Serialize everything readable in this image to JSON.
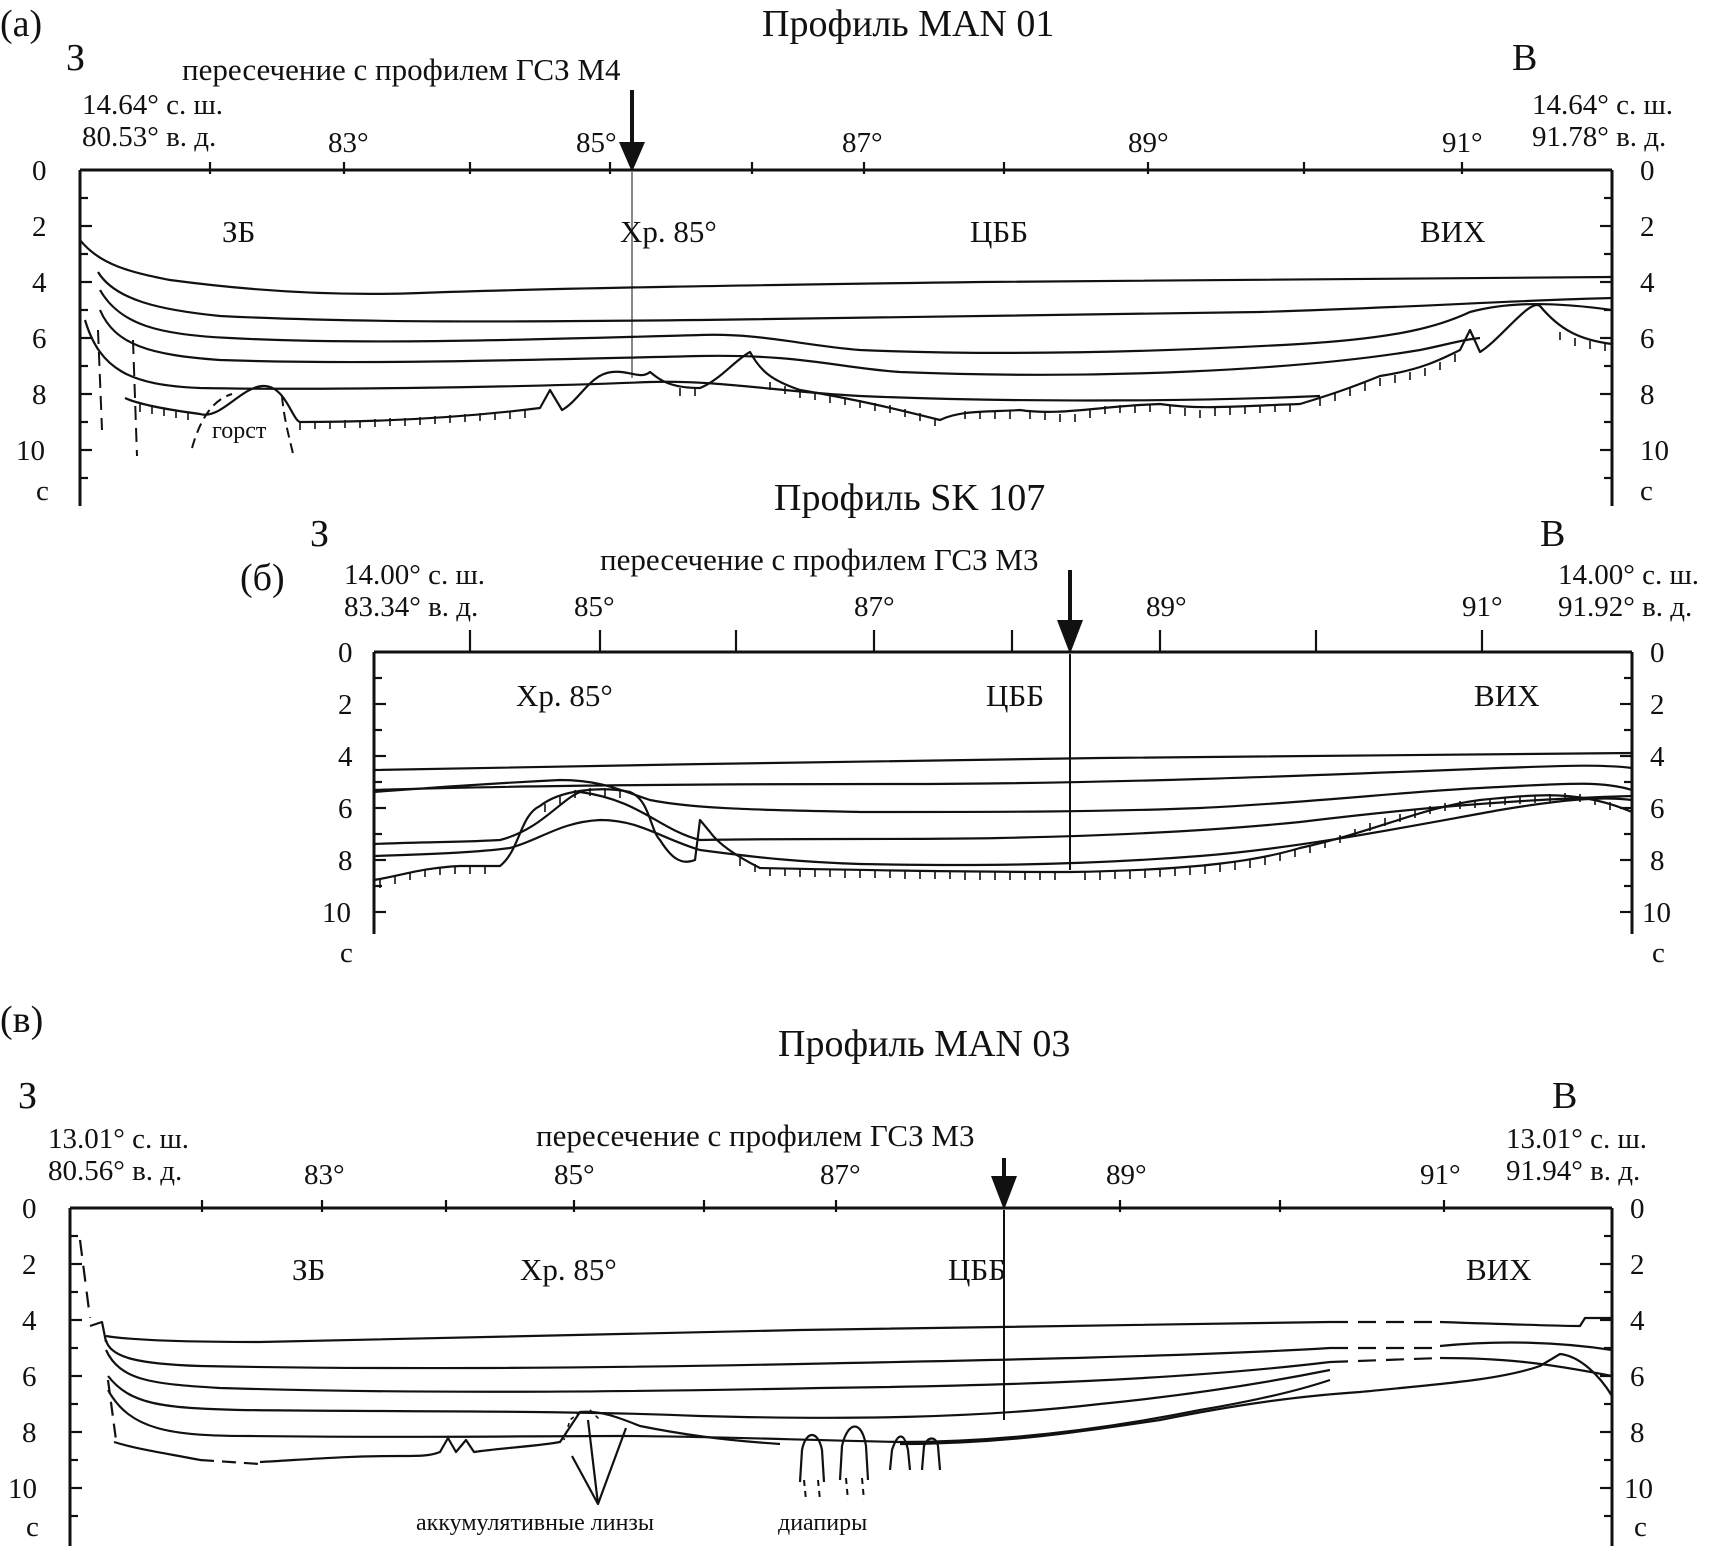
{
  "panels": [
    {
      "letter": "(а)",
      "title": "Профиль MAN 01",
      "west": "З",
      "east": "В",
      "crossing": "пересечение с профилем ГСЗ М4",
      "left_coord": [
        "14.64° с. ш.",
        "80.53° в. д."
      ],
      "right_coord": [
        "14.64° с. ш.",
        "91.78° в. д."
      ],
      "lon_ticks": [
        "83°",
        "85°",
        "87°",
        "89°",
        "91°"
      ],
      "depth_ticks": [
        "0",
        "2",
        "4",
        "6",
        "8",
        "10"
      ],
      "unit": "с",
      "regions": [
        "ЗБ",
        "Хр. 85°",
        "ЦББ",
        "ВИХ"
      ],
      "annotations": [
        "горст"
      ]
    },
    {
      "letter": "(б)",
      "title": "Профиль SK 107",
      "west": "З",
      "east": "В",
      "crossing": "пересечение с профилем ГСЗ М3",
      "left_coord": [
        "14.00° с. ш.",
        "83.34° в. д."
      ],
      "right_coord": [
        "14.00° с. ш.",
        "91.92° в. д."
      ],
      "lon_ticks": [
        "85°",
        "87°",
        "89°",
        "91°"
      ],
      "depth_ticks": [
        "0",
        "2",
        "4",
        "6",
        "8",
        "10"
      ],
      "unit": "с",
      "regions": [
        "Хр. 85°",
        "ЦББ",
        "ВИХ"
      ],
      "annotations": []
    },
    {
      "letter": "(в)",
      "title": "Профиль MAN 03",
      "west": "З",
      "east": "В",
      "crossing": "пересечение с профилем ГСЗ М3",
      "left_coord": [
        "13.01° с. ш.",
        "80.56° в. д."
      ],
      "right_coord": [
        "13.01° с. ш.",
        "91.94° в. д."
      ],
      "lon_ticks": [
        "83°",
        "85°",
        "87°",
        "89°",
        "91°"
      ],
      "depth_ticks": [
        "0",
        "2",
        "4",
        "6",
        "8",
        "10"
      ],
      "unit": "с",
      "regions": [
        "ЗБ",
        "Хр. 85°",
        "ЦББ",
        "ВИХ"
      ],
      "annotations": [
        "аккумулятивные линзы",
        "диапиры"
      ]
    }
  ]
}
